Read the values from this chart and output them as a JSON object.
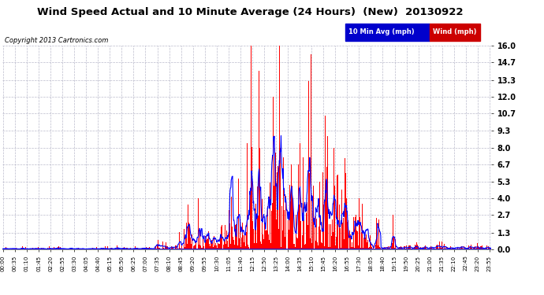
{
  "title": "Wind Speed Actual and 10 Minute Average (24 Hours)  (New)  20130922",
  "copyright": "Copyright 2013 Cartronics.com",
  "legend_labels": [
    "10 Min Avg (mph)",
    "Wind (mph)"
  ],
  "legend_bg_colors": [
    "#0000cc",
    "#cc0000"
  ],
  "yticks": [
    0.0,
    1.3,
    2.7,
    4.0,
    5.3,
    6.7,
    8.0,
    9.3,
    10.7,
    12.0,
    13.3,
    14.7,
    16.0
  ],
  "ymax": 16.0,
  "ymin": 0.0,
  "bg_color": "#ffffff",
  "plot_bg": "#ffffff",
  "grid_color": "#bbbbcc",
  "title_color": "#000000",
  "bar_color_wind": "#ff0000",
  "line_color_avg": "#0000ff",
  "baseline_color": "#0000ff",
  "tick_interval_min": 35
}
